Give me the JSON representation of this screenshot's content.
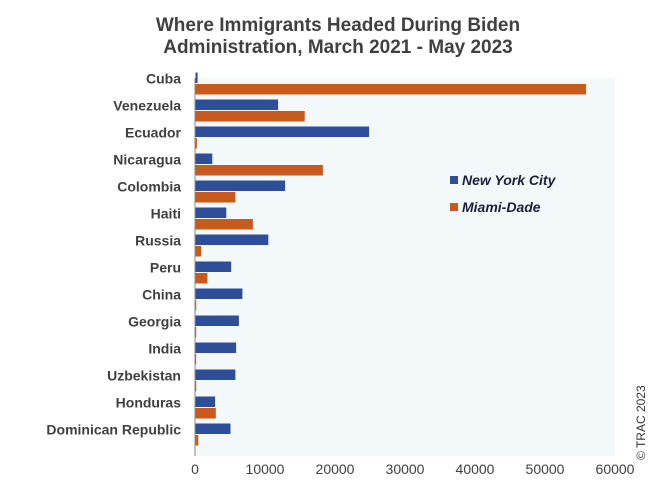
{
  "chart_data": {
    "type": "bar",
    "orientation": "horizontal",
    "title_lines": [
      "Where Immigrants Headed During Biden",
      "Administration, March 2021 - May 2023"
    ],
    "categories": [
      "Cuba",
      "Venezuela",
      "Ecuador",
      "Nicaragua",
      "Colombia",
      "Haiti",
      "Russia",
      "Peru",
      "China",
      "Georgia",
      "India",
      "Uzbekistan",
      "Honduras",
      "Dominican Republic"
    ],
    "series": [
      {
        "name": "New York City",
        "color": "#2e4e9a",
        "values": [
          300,
          11800,
          24800,
          2400,
          12800,
          4400,
          10400,
          5100,
          6700,
          6200,
          5800,
          5700,
          2800,
          5000
        ]
      },
      {
        "name": "Miami-Dade",
        "color": "#c85a1e",
        "values": [
          55800,
          15600,
          200,
          18200,
          5700,
          8200,
          800,
          1700,
          100,
          100,
          100,
          100,
          2900,
          400
        ]
      }
    ],
    "xlim": [
      0,
      60000
    ],
    "xticks": [
      "0",
      "10000",
      "20000",
      "30000",
      "40000",
      "50000",
      "60000"
    ],
    "grid": false,
    "legend_position": "right",
    "plot_background": "#f3f8fb",
    "credit": "© TRAC 2023"
  }
}
